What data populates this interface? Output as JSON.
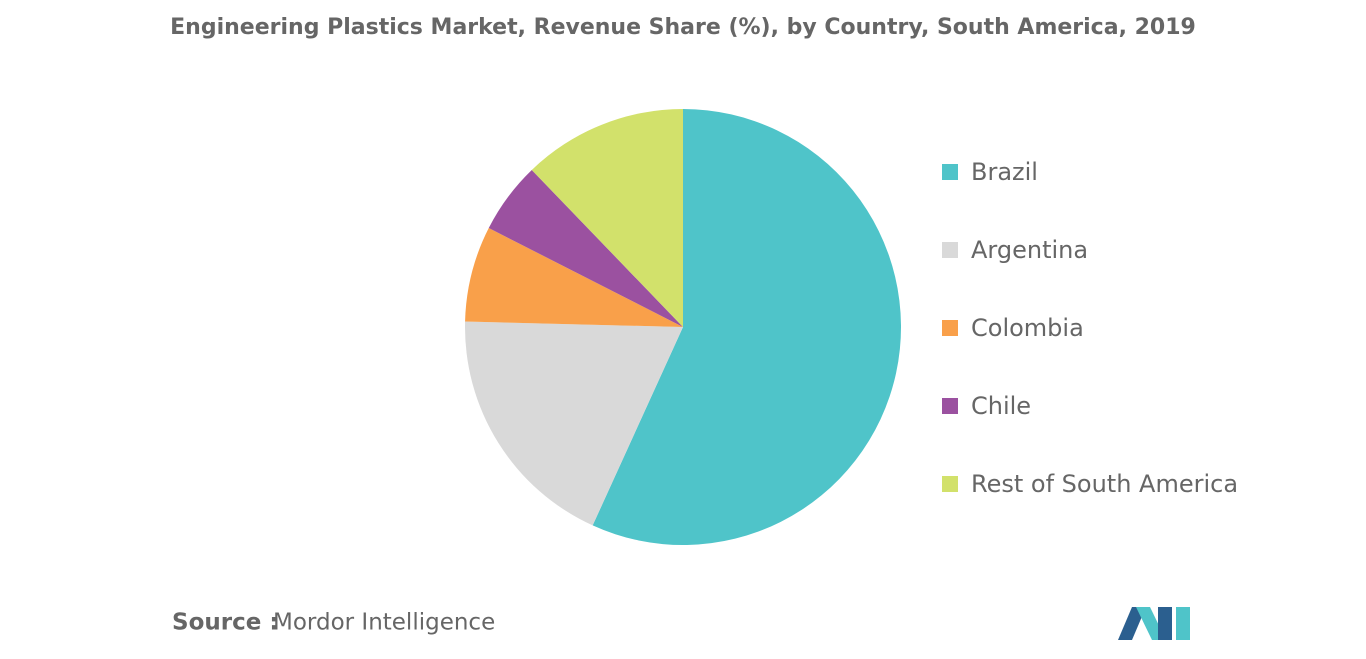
{
  "chart_data": {
    "type": "pie",
    "title": "Engineering Plastics Market, Revenue Share (%), by Country, South America, 2019",
    "categories": [
      "Brazil",
      "Argentina",
      "Colombia",
      "Chile",
      "Rest of South America"
    ],
    "values": [
      56.8,
      18.6,
      7.1,
      5.3,
      12.2
    ],
    "colors": [
      "#4fc4c9",
      "#d9d9d9",
      "#f9a04a",
      "#9b51a0",
      "#d2e16b"
    ],
    "legend": "right"
  },
  "source": {
    "label": "Source :",
    "text": "Mordor Intelligence"
  }
}
